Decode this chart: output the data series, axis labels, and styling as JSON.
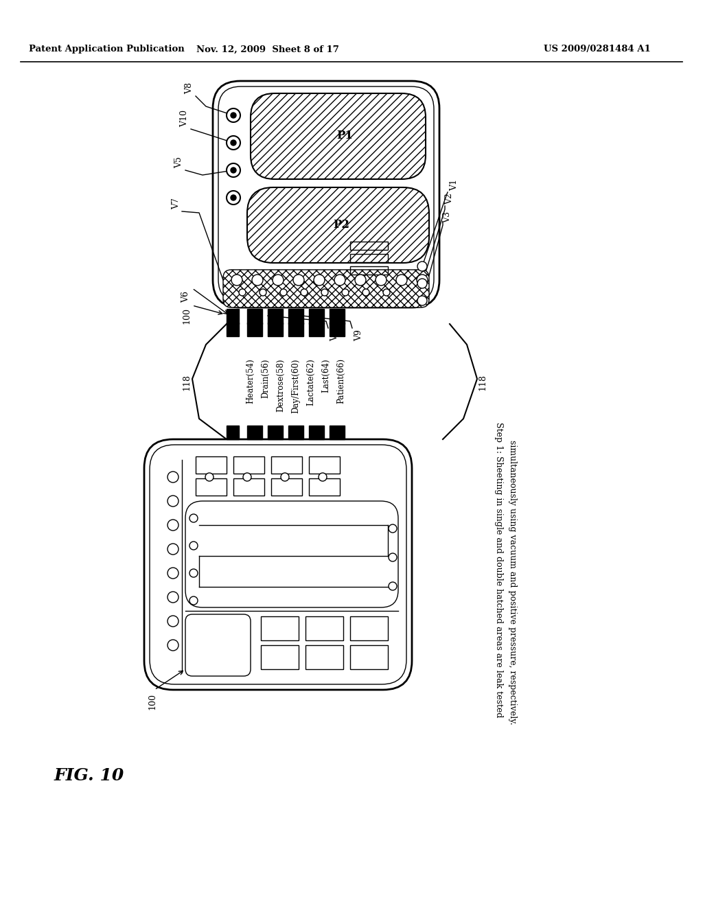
{
  "bg": "#ffffff",
  "header_left": "Patent Application Publication",
  "header_mid": "Nov. 12, 2009  Sheet 8 of 17",
  "header_right": "US 2009/0281484 A1",
  "fig_label": "FIG. 10",
  "step_line1": "Step 1: Sheeting in single and double hatched areas are leak tested",
  "step_line2": "simultaneously using vacuum and positive pressure, respectively.",
  "list_labels": [
    "Heater(54)",
    "Drain(56)",
    "Dextrose(58)",
    "Day/First(60)",
    "Lactate(62)",
    "Last(64)",
    "Patient(66)"
  ],
  "black": "#000000",
  "gray_light": "#cccccc"
}
